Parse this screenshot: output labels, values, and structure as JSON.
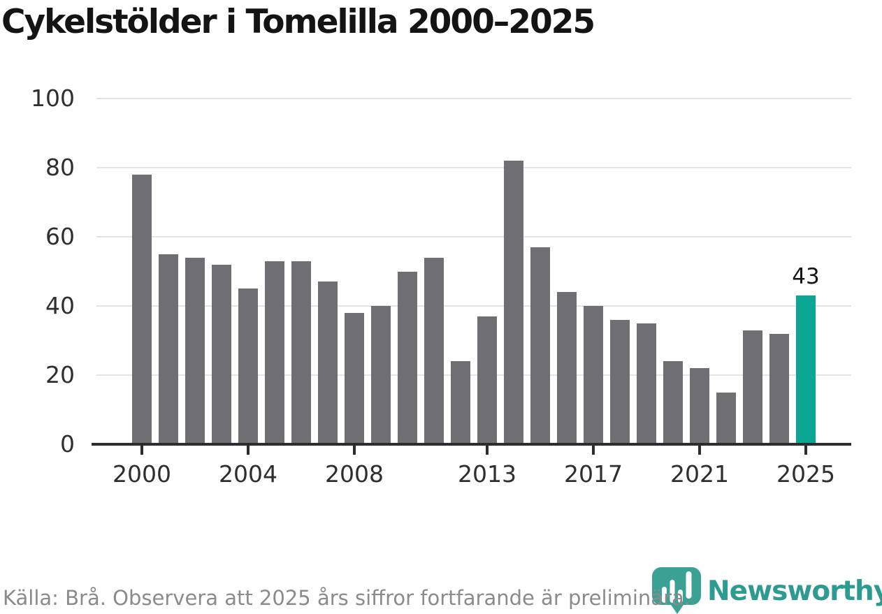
{
  "title": "Cykelstölder i Tomelilla 2000–2025",
  "chart_data": {
    "type": "bar",
    "title": "Cykelstölder i Tomelilla 2000–2025",
    "x": [
      2000,
      2001,
      2002,
      2003,
      2004,
      2005,
      2006,
      2007,
      2008,
      2009,
      2010,
      2011,
      2012,
      2013,
      2014,
      2015,
      2016,
      2017,
      2018,
      2019,
      2020,
      2021,
      2022,
      2023,
      2024,
      2025
    ],
    "values": [
      78,
      55,
      54,
      52,
      45,
      53,
      53,
      47,
      38,
      40,
      50,
      54,
      24,
      37,
      82,
      57,
      44,
      40,
      36,
      35,
      24,
      22,
      15,
      33,
      32,
      43
    ],
    "x_ticks": [
      2000,
      2004,
      2008,
      2013,
      2017,
      2021,
      2025
    ],
    "y_ticks": [
      0,
      20,
      40,
      60,
      80,
      100
    ],
    "ylim": [
      0,
      100
    ],
    "xlabel": "",
    "ylabel": "",
    "grid": "horizontal",
    "legend": "none",
    "highlight_year": 2025,
    "annotation": {
      "year": 2025,
      "label": "43"
    },
    "colors": {
      "bar": "#6e6e73",
      "highlight": "#0ca695",
      "axis": "#2d2d2d",
      "gridline": "#e4e4e4",
      "tick_label": "#2e2e2e"
    }
  },
  "footer": {
    "source_text": "Källa: Brå. Observera att 2025 års siffror fortfarande är preliminära."
  },
  "branding": {
    "logo_text": "Newsworthy",
    "logo_text_color": "#2d9b90",
    "logo_icon_color": "#3aa194",
    "icon_name": "newsworthy-pin-barchart-icon"
  }
}
